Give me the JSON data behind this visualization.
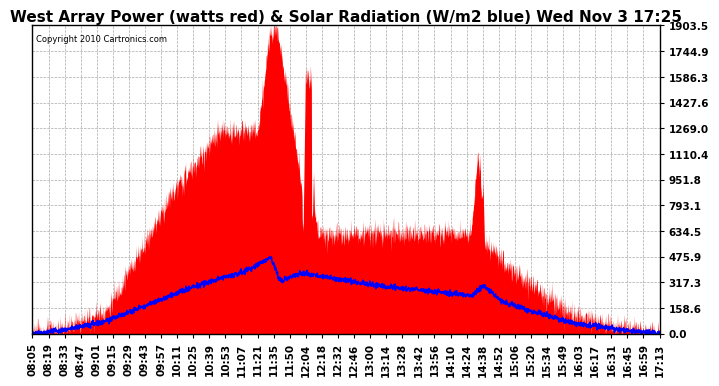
{
  "title": "West Array Power (watts red) & Solar Radiation (W/m2 blue) Wed Nov 3 17:25",
  "copyright": "Copyright 2010 Cartronics.com",
  "background_color": "#ffffff",
  "plot_bg_color": "#ffffff",
  "grid_color": "#aaaaaa",
  "y_ticks": [
    0.0,
    158.6,
    317.3,
    475.9,
    634.5,
    793.1,
    951.8,
    1110.4,
    1269.0,
    1427.6,
    1586.3,
    1744.9,
    1903.5
  ],
  "y_max": 1903.5,
  "x_labels": [
    "08:05",
    "08:19",
    "08:33",
    "08:47",
    "09:01",
    "09:15",
    "09:29",
    "09:43",
    "09:57",
    "10:11",
    "10:25",
    "10:39",
    "10:53",
    "11:07",
    "11:21",
    "11:35",
    "11:50",
    "12:04",
    "12:18",
    "12:32",
    "12:46",
    "13:00",
    "13:14",
    "13:28",
    "13:42",
    "13:56",
    "14:10",
    "14:24",
    "14:38",
    "14:52",
    "15:06",
    "15:20",
    "15:34",
    "15:49",
    "16:03",
    "16:17",
    "16:31",
    "16:45",
    "16:59",
    "17:13"
  ],
  "red_color": "#ff0000",
  "blue_color": "#0000ff",
  "title_fontsize": 11,
  "tick_fontsize": 7.5
}
